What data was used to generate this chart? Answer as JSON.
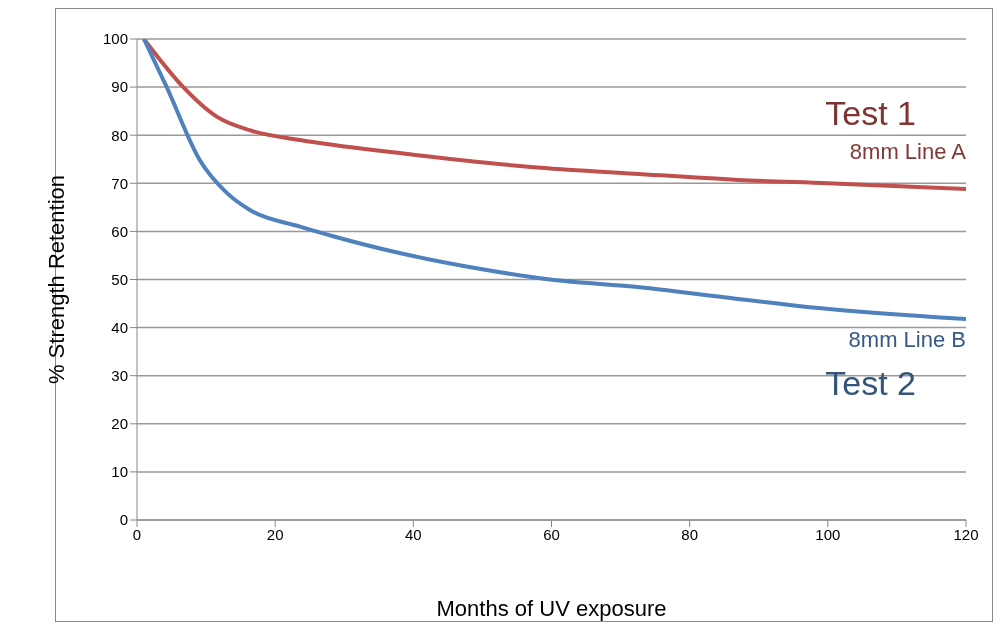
{
  "chart_data": {
    "type": "line",
    "xlabel": "Months of UV exposure",
    "ylabel": "% Strength Retention",
    "xlim": [
      0,
      120
    ],
    "xticks": [
      0,
      20,
      40,
      60,
      80,
      100,
      120
    ],
    "ylim": [
      0,
      100
    ],
    "yticks": [
      0,
      10,
      20,
      30,
      40,
      50,
      60,
      70,
      80,
      90,
      100
    ],
    "grid": "y",
    "marker": "none",
    "line_style": "solid",
    "series": [
      {
        "name": "8mm Line A",
        "color": "#c0504d",
        "x": [
          1,
          6.7,
          11.6,
          16.4,
          23.6,
          38,
          57,
          72,
          87,
          100,
          120
        ],
        "values": [
          100,
          90,
          83.8,
          81,
          79,
          76.3,
          73.4,
          72,
          70.7,
          70,
          68.8
        ]
      },
      {
        "name": "8mm Line B",
        "color": "#4f81bd",
        "x": [
          1,
          4.3,
          9.1,
          13,
          16.4,
          23.6,
          28.4,
          38,
          47.7,
          59.8,
          72.8,
          85,
          97,
          120
        ],
        "values": [
          100,
          90,
          74.8,
          68,
          64.4,
          61,
          59,
          55.5,
          52.7,
          50,
          48.4,
          46.3,
          44.3,
          41.8
        ]
      }
    ],
    "annotations": [
      "Test 1",
      "Test 2"
    ]
  }
}
